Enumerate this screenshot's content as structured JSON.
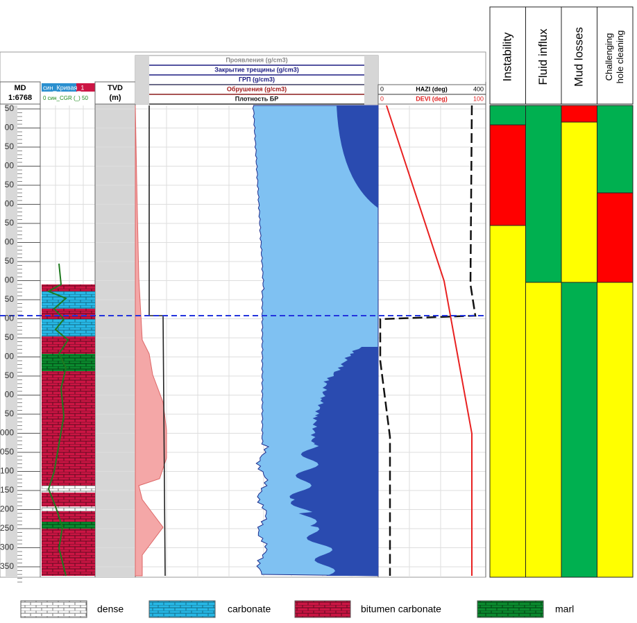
{
  "depth_track": {
    "header": [
      "MD",
      "1:6768"
    ],
    "labels": [
      "50",
      "00",
      "50",
      "00",
      "50",
      "00",
      "50",
      "00",
      "50",
      "00",
      "50",
      "00",
      "50",
      "00",
      "50",
      "00",
      "50",
      "000",
      "050",
      "100",
      "150",
      "200",
      "250",
      "300",
      "350"
    ]
  },
  "lithology_track": {
    "header": [
      "син_Кривая_1",
      "0 син_CGR (_) 50"
    ]
  },
  "tvd_track": {
    "header": [
      "TVD",
      "(m)"
    ]
  },
  "pressure_track": {
    "curves": [
      "Проявления (g/cm3)",
      "Закрытие трещины (g/cm3)",
      "ГРП (g/cm3)",
      "Обрушения (g/cm3)",
      "Плотность БР"
    ]
  },
  "angle_track": {
    "hazi": {
      "min": 0,
      "name": "HAZI (deg)",
      "max": 400
    },
    "devi": {
      "min": 0,
      "name": "DEVI (deg)",
      "max": 100
    }
  },
  "risk_table": {
    "columns": [
      "Instability",
      "Fluid influx",
      "Mud losses",
      [
        "Challenging",
        "hole cleaning"
      ]
    ]
  },
  "legend": [
    "dense",
    "carbonate",
    "bitumen carbonate",
    "marl"
  ]
}
